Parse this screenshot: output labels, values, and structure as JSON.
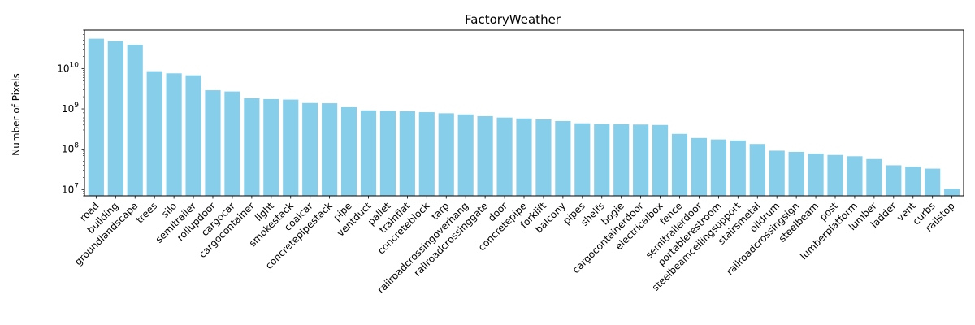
{
  "chart_data": {
    "type": "bar",
    "title": "FactoryWeather",
    "xlabel": "",
    "ylabel": "Number of Pixels",
    "yscale": "log",
    "ylim": [
      7000000,
      90000000000
    ],
    "y_ticks": [
      {
        "value": 10000000,
        "base": "10",
        "exp": "7"
      },
      {
        "value": 100000000,
        "base": "10",
        "exp": "8"
      },
      {
        "value": 1000000000,
        "base": "10",
        "exp": "9"
      },
      {
        "value": 10000000000,
        "base": "10",
        "exp": "10"
      }
    ],
    "bar_color": "#87ceeb",
    "grid": false,
    "legend": "none",
    "categories": [
      "road",
      "building",
      "groundlandscape",
      "trees",
      "silo",
      "semitrailer",
      "rollupdoor",
      "cargocar",
      "cargocontainer",
      "light",
      "smokestack",
      "coalcar",
      "concretepipestack",
      "pipe",
      "ventduct",
      "pallet",
      "trainflat",
      "concreteblock",
      "tarp",
      "railroadcrossingoverhang",
      "railroadcrossinggate",
      "door",
      "concretepipe",
      "forklift",
      "balcony",
      "pipes",
      "shelfs",
      "bogie",
      "cargocontainerdoor",
      "electricalbox",
      "fence",
      "semitrailerdoor",
      "portablerestroom",
      "steelbeamceilingsupport",
      "stairsmetal",
      "oildrum",
      "railroadcrossingsign",
      "steelbeam",
      "post",
      "lumberplatform",
      "lumber",
      "ladder",
      "vent",
      "curbs",
      "railstop"
    ],
    "values": [
      55000000000,
      48000000000,
      39000000000,
      8600000000,
      7600000000,
      6800000000,
      2900000000,
      2700000000,
      1850000000,
      1750000000,
      1700000000,
      1400000000,
      1380000000,
      1100000000,
      920000000,
      900000000,
      880000000,
      830000000,
      780000000,
      730000000,
      660000000,
      610000000,
      580000000,
      550000000,
      500000000,
      440000000,
      425000000,
      420000000,
      410000000,
      400000000,
      240000000,
      190000000,
      175000000,
      165000000,
      135000000,
      92000000,
      86000000,
      78000000,
      72000000,
      67000000,
      57000000,
      40000000,
      37000000,
      33000000,
      10500000
    ]
  }
}
